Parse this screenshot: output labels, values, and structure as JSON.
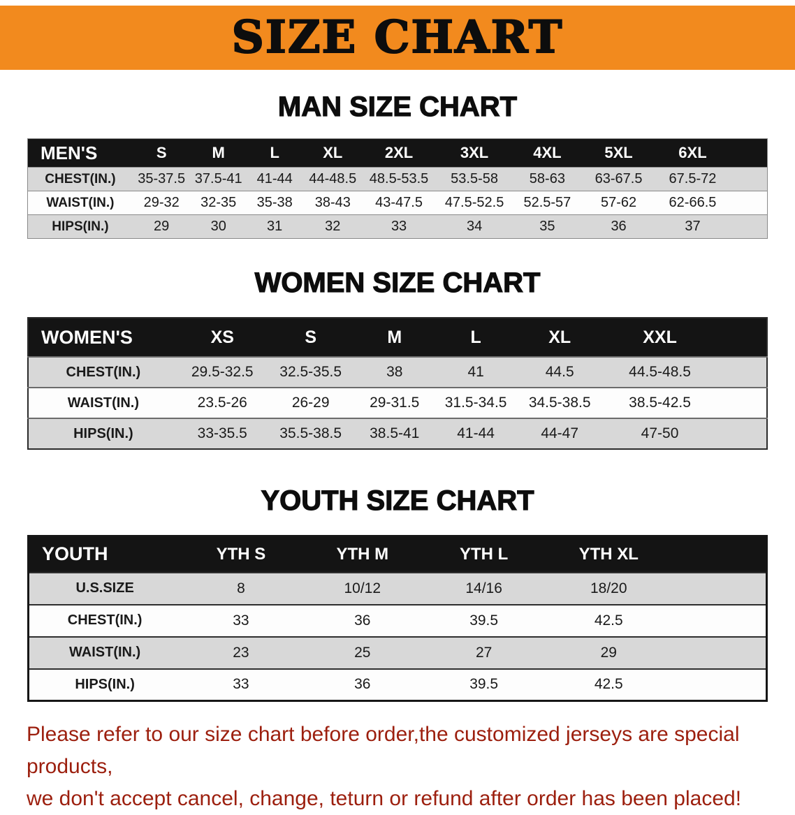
{
  "banner": {
    "title": "SIZE CHART",
    "background_color": "#F28A1E",
    "text_color": "#0d0d0d"
  },
  "tables": [
    {
      "heading": "MAN SIZE CHART",
      "header": [
        "MEN'S",
        "S",
        "M",
        "L",
        "XL",
        "2XL",
        "3XL",
        "4XL",
        "5XL",
        "6XL"
      ],
      "rows": [
        [
          "CHEST(IN.)",
          "35-37.5",
          "37.5-41",
          "41-44",
          "44-48.5",
          "48.5-53.5",
          "53.5-58",
          "58-63",
          "63-67.5",
          "67.5-72"
        ],
        [
          "WAIST(IN.)",
          "29-32",
          "32-35",
          "35-38",
          "38-43",
          "43-47.5",
          "47.5-52.5",
          "52.5-57",
          "57-62",
          "62-66.5"
        ],
        [
          "HIPS(IN.)",
          "29",
          "30",
          "31",
          "32",
          "33",
          "34",
          "35",
          "36",
          "37"
        ]
      ]
    },
    {
      "heading": "WOMEN SIZE CHART",
      "header": [
        "WOMEN'S",
        "XS",
        "S",
        "M",
        "L",
        "XL",
        "XXL"
      ],
      "rows": [
        [
          "CHEST(IN.)",
          "29.5-32.5",
          "32.5-35.5",
          "38",
          "41",
          "44.5",
          "44.5-48.5"
        ],
        [
          "WAIST(IN.)",
          "23.5-26",
          "26-29",
          "29-31.5",
          "31.5-34.5",
          "34.5-38.5",
          "38.5-42.5"
        ],
        [
          "HIPS(IN.)",
          "33-35.5",
          "35.5-38.5",
          "38.5-41",
          "41-44",
          "44-47",
          "47-50"
        ]
      ]
    },
    {
      "heading": "YOUTH SIZE CHART",
      "header": [
        "YOUTH",
        "YTH S",
        "YTH M",
        "YTH L",
        "YTH XL"
      ],
      "rows": [
        [
          "U.S.SIZE",
          "8",
          "10/12",
          "14/16",
          "18/20"
        ],
        [
          "CHEST(IN.)",
          "33",
          "36",
          "39.5",
          "42.5"
        ],
        [
          "WAIST(IN.)",
          "23",
          "25",
          "27",
          "29"
        ],
        [
          "HIPS(IN.)",
          "33",
          "36",
          "39.5",
          "42.5"
        ]
      ]
    }
  ],
  "notice": {
    "line1": "Please refer to our size chart before order,the customized jerseys are special products,",
    "line2": "we don't accept cancel, change, teturn or refund after order has been placed!",
    "text_color": "#9C1F0E"
  }
}
